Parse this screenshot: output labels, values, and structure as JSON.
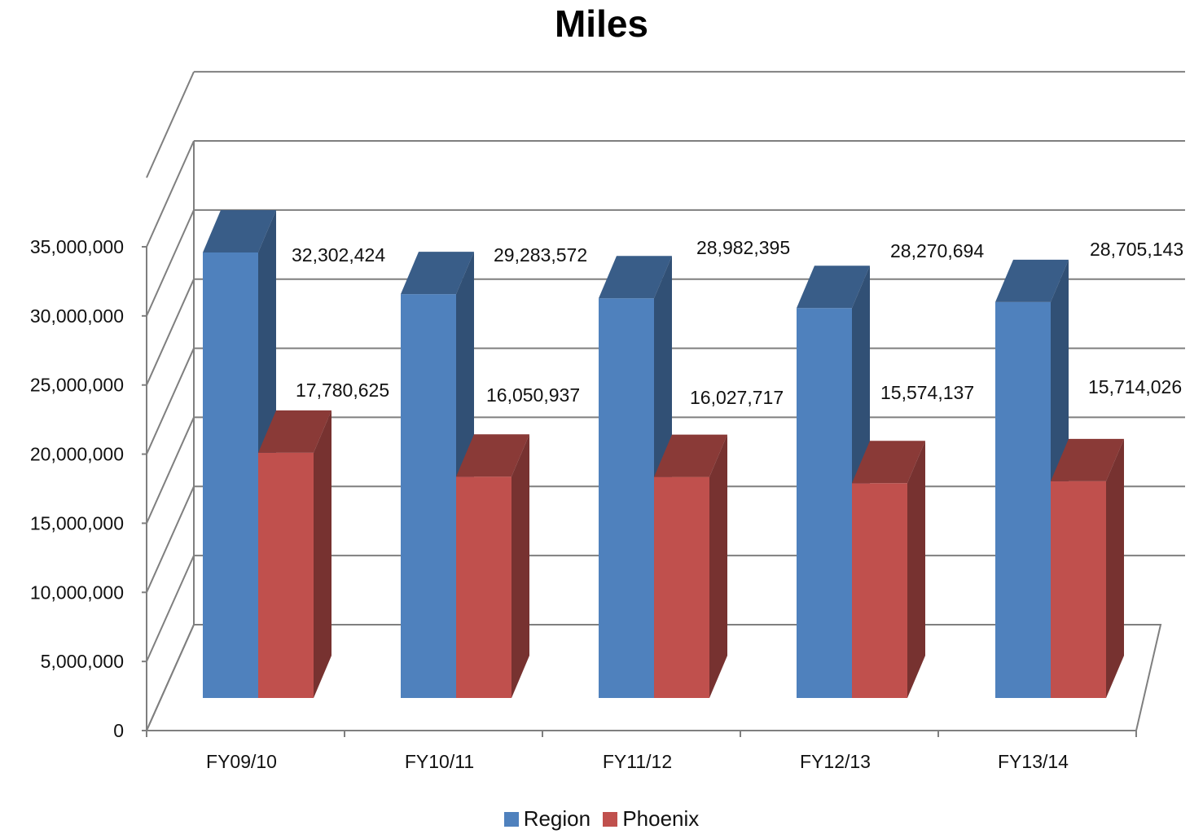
{
  "chart_data": {
    "type": "bar",
    "title": "Miles",
    "categories": [
      "FY09/10",
      "FY10/11",
      "FY11/12",
      "FY12/13",
      "FY13/14"
    ],
    "series": [
      {
        "name": "Region",
        "color": "#4F81BD",
        "values": [
          32302424,
          29283572,
          28982395,
          28270694,
          28705143
        ],
        "labels": [
          "32,302,424",
          "29,283,572",
          "28,982,395",
          "28,270,694",
          "28,705,143"
        ]
      },
      {
        "name": "Phoenix",
        "color": "#C0504D",
        "values": [
          17780625,
          16050937,
          16027717,
          15574137,
          15714026
        ],
        "labels": [
          "17,780,625",
          "16,050,937",
          "16,027,717",
          "15,574,137",
          "15,714,026"
        ]
      }
    ],
    "ylim": [
      0,
      35000000
    ],
    "yticks": [
      0,
      5000000,
      10000000,
      15000000,
      20000000,
      25000000,
      30000000,
      35000000
    ],
    "ytick_labels": [
      "0",
      "5,000,000",
      "10,000,000",
      "15,000,000",
      "20,000,000",
      "25,000,000",
      "30,000,000",
      "35,000,000"
    ],
    "grid": true,
    "style": "3d-clustered-column",
    "legend_position": "bottom"
  }
}
